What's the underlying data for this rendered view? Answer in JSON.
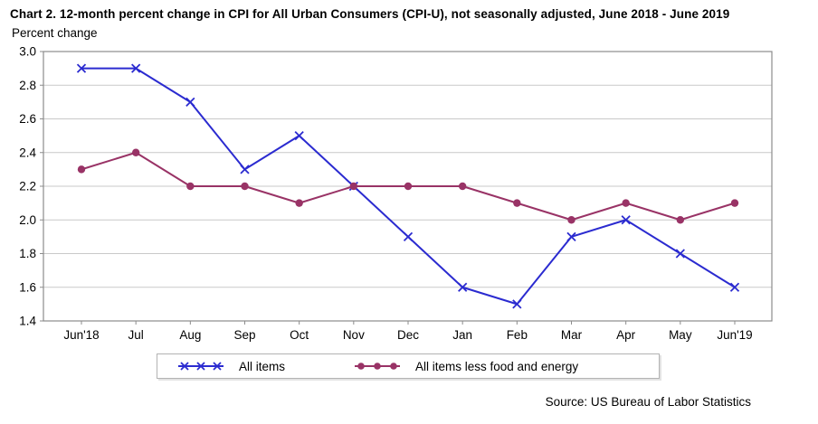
{
  "header": {
    "title": "Chart 2. 12-month percent change in CPI for All Urban Consumers (CPI-U), not seasonally adjusted, June 2018 - June 2019",
    "axis_unit_label": "Percent change"
  },
  "source_note": "Source: US Bureau of Labor Statistics",
  "colors": {
    "all_items_blue": "#2B2BD0",
    "core_maroon": "#993366",
    "gridline": "#C9C9C9",
    "plot_border": "#8C8C8C",
    "text": "#000000",
    "legend_border": "#B3B3B3"
  },
  "chart_data": {
    "type": "line",
    "title": "Chart 2. 12-month percent change in CPI for All Urban Consumers (CPI-U), not seasonally adjusted, June 2018 - June 2019",
    "xlabel": "",
    "ylabel": "Percent change",
    "categories": [
      "Jun'18",
      "Jul",
      "Aug",
      "Sep",
      "Oct",
      "Nov",
      "Dec",
      "Jan",
      "Feb",
      "Mar",
      "Apr",
      "May",
      "Jun'19"
    ],
    "series": [
      {
        "name": "All items",
        "marker": "x",
        "color": "#2B2BD0",
        "values": [
          2.9,
          2.9,
          2.7,
          2.3,
          2.5,
          2.2,
          1.9,
          1.6,
          1.5,
          1.9,
          2.0,
          1.8,
          1.6
        ]
      },
      {
        "name": "All items less food and energy",
        "marker": "circle",
        "color": "#993366",
        "values": [
          2.3,
          2.4,
          2.2,
          2.2,
          2.1,
          2.2,
          2.2,
          2.2,
          2.1,
          2.0,
          2.1,
          2.0,
          2.1
        ]
      }
    ],
    "ylim": [
      1.4,
      3.0
    ],
    "ytick_step": 0.2,
    "ytick_labels": [
      "1.4",
      "1.6",
      "1.8",
      "2.0",
      "2.2",
      "2.4",
      "2.6",
      "2.8",
      "3.0"
    ],
    "grid": true,
    "legend_position": "bottom"
  }
}
